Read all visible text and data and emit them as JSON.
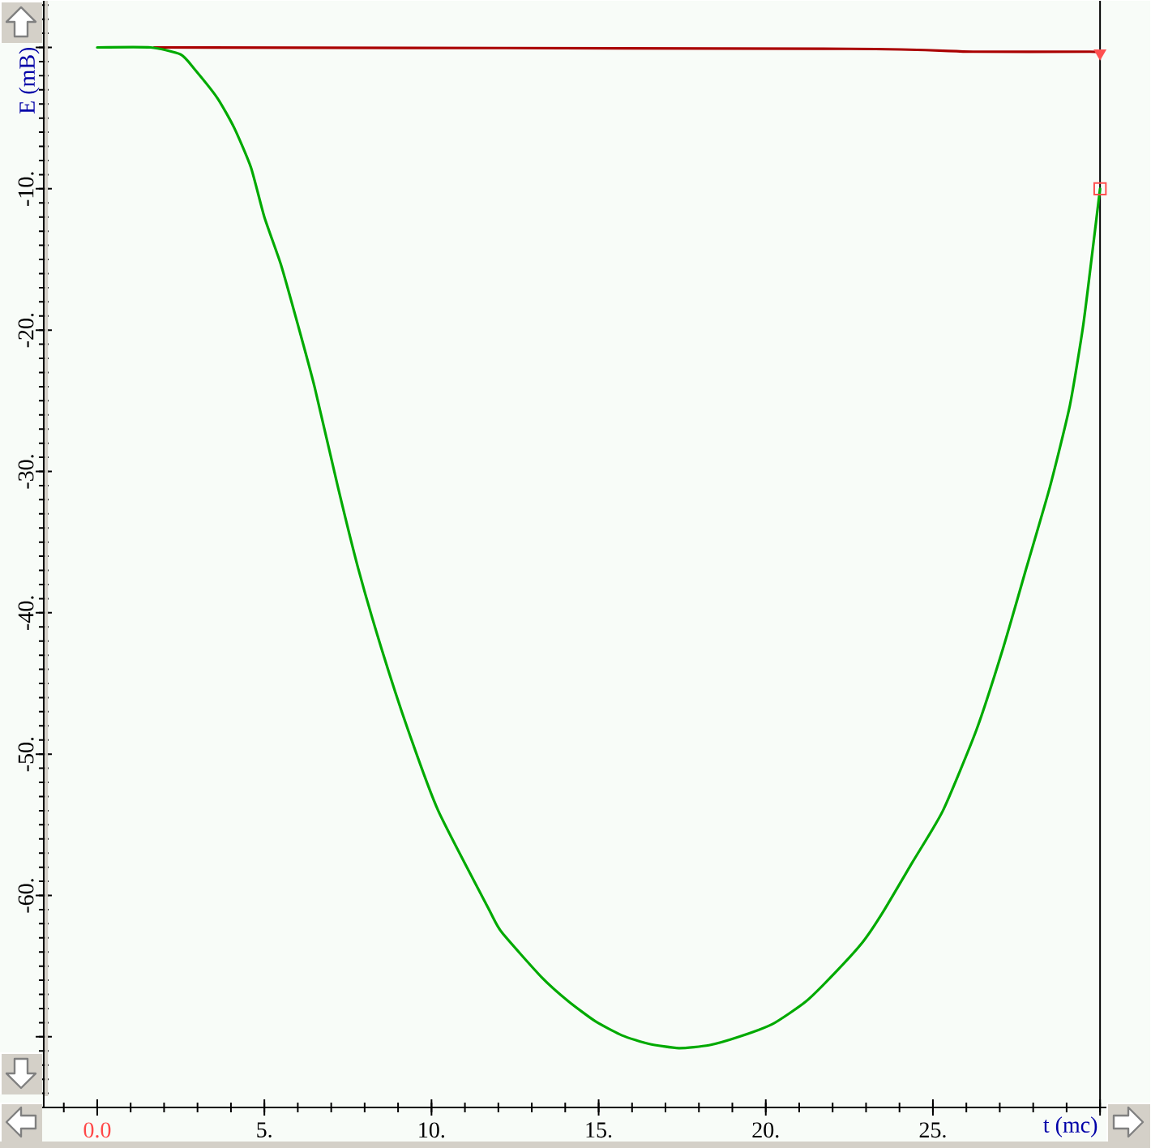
{
  "chart_data": {
    "type": "line",
    "xlabel": "t (mc)",
    "ylabel": "E (mB)",
    "xlim": [
      -1.6,
      31.5
    ],
    "ylim": [
      -75,
      3.3
    ],
    "xticks": [
      {
        "value": 0,
        "label": "0.0"
      },
      {
        "value": 5,
        "label": "5."
      },
      {
        "value": 10,
        "label": "10."
      },
      {
        "value": 15,
        "label": "15."
      },
      {
        "value": 20,
        "label": "20."
      },
      {
        "value": 25,
        "label": "25."
      },
      {
        "value": 30,
        "label": null
      }
    ],
    "yticks": [
      {
        "value": 0,
        "label": null
      },
      {
        "value": -10,
        "label": "-10."
      },
      {
        "value": -20,
        "label": "-20."
      },
      {
        "value": -30,
        "label": "-30."
      },
      {
        "value": -40,
        "label": "-40."
      },
      {
        "value": -50,
        "label": "-50."
      },
      {
        "value": -60,
        "label": "-60."
      },
      {
        "value": -70,
        "label": null
      }
    ],
    "series": [
      {
        "color": "#aa0000",
        "x": [
          1.7,
          22.5,
          26.2,
          29.7,
          30.0
        ],
        "values": [
          0,
          -0.1,
          -0.3,
          -0.3,
          -0.4
        ]
      },
      {
        "color": "#00aa00",
        "x": [
          0,
          1.6,
          2.5,
          2.9,
          3.6,
          4.1,
          4.6,
          5.0,
          5.5,
          6.0,
          6.5,
          7.2,
          7.8,
          8.5,
          9.3,
          10.2,
          11.7,
          12.1,
          13.3,
          14.1,
          14.9,
          15.7,
          16.5,
          17.4,
          18.3,
          19.2,
          20.2,
          21.2,
          22.1,
          22.9,
          23.5,
          24.4,
          25.3,
          26.3,
          27.1,
          27.8,
          28.5,
          29.1,
          29.5,
          29.8,
          30.0
        ],
        "values": [
          0,
          0,
          -0.5,
          -1.5,
          -3.6,
          -5.7,
          -8.5,
          -12.0,
          -15.4,
          -19.6,
          -24.0,
          -31.1,
          -36.8,
          -42.5,
          -48.3,
          -54.0,
          -60.9,
          -62.6,
          -65.8,
          -67.5,
          -68.9,
          -69.9,
          -70.5,
          -70.8,
          -70.6,
          -70.0,
          -69.1,
          -67.5,
          -65.4,
          -63.3,
          -61.2,
          -57.6,
          -54.0,
          -48.3,
          -42.5,
          -36.8,
          -31.1,
          -25.3,
          -19.6,
          -13.9,
          -10.0
        ]
      },
      {
        "type": "scatter",
        "color": "#ff5050",
        "marker": "triangle",
        "x": [
          30.0
        ],
        "values": [
          -0.4
        ]
      },
      {
        "type": "scatter",
        "color": "#ff5050",
        "marker": "square",
        "x": [
          30.0
        ],
        "values": [
          -10.0
        ]
      }
    ],
    "ref_lines": [
      {
        "axis": "x",
        "value": 30,
        "color": "#000000"
      }
    ]
  }
}
